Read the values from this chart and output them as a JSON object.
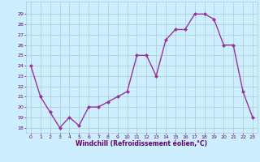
{
  "x": [
    0,
    1,
    2,
    3,
    4,
    5,
    6,
    7,
    8,
    9,
    10,
    11,
    12,
    13,
    14,
    15,
    16,
    17,
    18,
    19,
    20,
    21,
    22,
    23
  ],
  "y": [
    24,
    21,
    19.5,
    18,
    19,
    18.2,
    20,
    20,
    20.5,
    21,
    21.5,
    25,
    25,
    23,
    26.5,
    27.5,
    27.5,
    29,
    29,
    28.5,
    26,
    26,
    21.5,
    19
  ],
  "line_color": "#993399",
  "marker": "D",
  "marker_size": 2,
  "bg_color": "#cceeff",
  "grid_color": "#aacccc",
  "xlabel": "Windchill (Refroidissement éolien,°C)",
  "xlim": [
    -0.5,
    23.5
  ],
  "ylim": [
    17.5,
    30.2
  ],
  "yticks": [
    18,
    19,
    20,
    21,
    22,
    23,
    24,
    25,
    26,
    27,
    28,
    29
  ],
  "xticks": [
    0,
    1,
    2,
    3,
    4,
    5,
    6,
    7,
    8,
    9,
    10,
    11,
    12,
    13,
    14,
    15,
    16,
    17,
    18,
    19,
    20,
    21,
    22,
    23
  ],
  "label_color": "#660066",
  "tick_color": "#660066",
  "line_width": 1.0
}
